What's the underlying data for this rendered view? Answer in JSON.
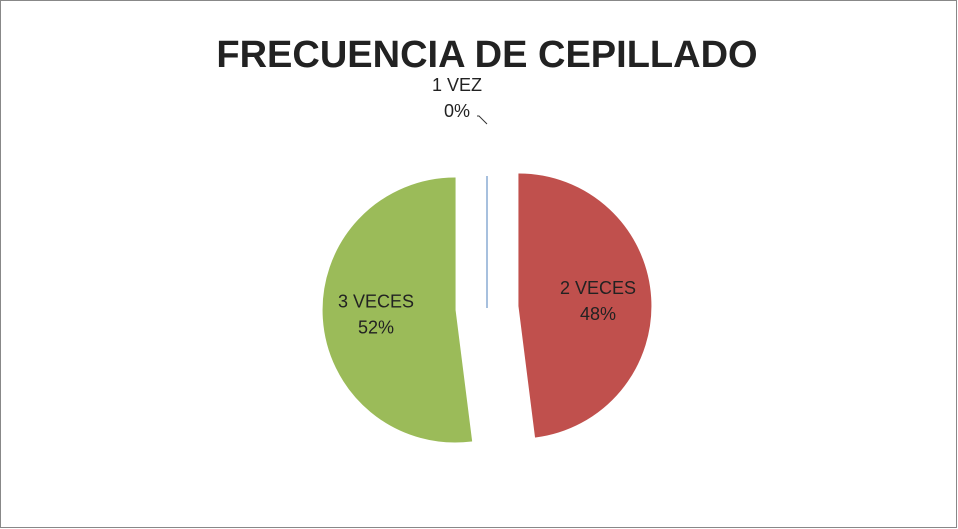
{
  "chart_data": {
    "type": "pie",
    "title": "FRECUENCIA DE CEPILLADO",
    "categories": [
      "1 VEZ",
      "2 VECES",
      "3 VECES"
    ],
    "values": [
      0,
      48,
      52
    ],
    "value_labels": [
      "0%",
      "48%",
      "52%"
    ],
    "colors": [
      "#4f81bd",
      "#c0504d",
      "#9bbb59"
    ]
  }
}
